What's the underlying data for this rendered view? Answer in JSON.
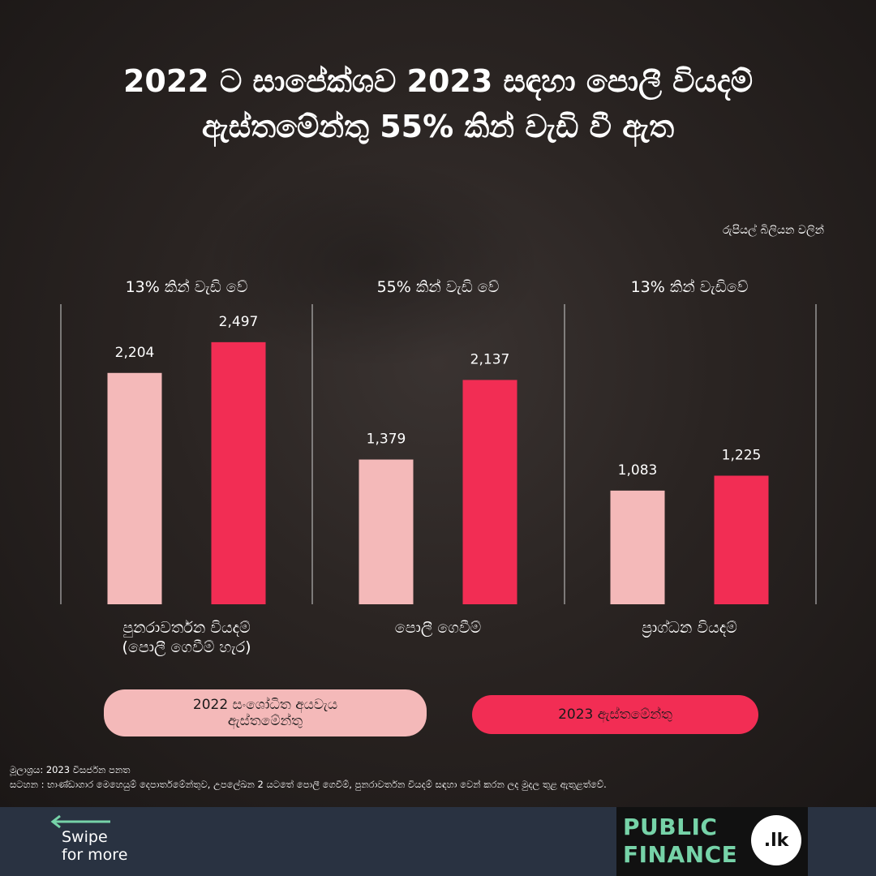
{
  "title": {
    "line1": "2022 ට සාපේක්ශව 2023 සඳහා පොලී වියදම්",
    "line2": "ඇස්තමේන්තු 55% කින් වැඩි වී ඇත"
  },
  "unit_note": "රුපියල් බිලියන වලින්",
  "colors": {
    "series_2022": "#f4b9b9",
    "series_2023": "#f22d54",
    "bottom_bar": "#293241",
    "brand_green": "#76d3a8"
  },
  "chart_data": {
    "type": "bar",
    "categories": [
      "පුනරාවර්තන වියදම් (පොලී ගෙවීම් හැර)",
      "පොලී ගෙවීම්",
      "ප්‍රාග්ධන වියදම්"
    ],
    "category_labels": [
      [
        "පුනරාවර්තන වියදම්",
        "(පොලී ගෙවීම් හැර)"
      ],
      [
        "පොලී ගෙවීම්"
      ],
      [
        "ප්‍රාග්ධන වියදම්"
      ]
    ],
    "growth_labels": [
      "13% කින් වැඩි වේ",
      "55% කින් වැඩි වේ",
      "13% කින් වැඩිවේ"
    ],
    "series": [
      {
        "name": "2022 සංශෝධිත අයවැය ඇස්තමේන්තු",
        "values": [
          2204,
          1379,
          1083
        ],
        "labels": [
          "2,204",
          "1,379",
          "1,083"
        ]
      },
      {
        "name": "2023 ඇස්තමේන්තු",
        "values": [
          2497,
          2137,
          1225
        ],
        "labels": [
          "2,497",
          "2,137",
          "1,225"
        ]
      }
    ],
    "ylim": [
      0,
      3400
    ],
    "grid": false,
    "legend_position": "bottom"
  },
  "legend": {
    "item_2022": "2022 සංශෝධිත අයවැය ඇස්තමේන්තු",
    "item_2023": "2023 ඇස්තමේන්තු"
  },
  "footer": {
    "source": "මූලාශ්‍රය: 2023 විසර්ජන පනත",
    "note": "සටහන : භාණ්ඩාගාර මෙහෙයුම් දෙපාර්තමේන්තුව, උපලේඛන 2 යටතේ පොලී ගෙවීම්, පුනරාවර්තන වියදම් සඳහා වෙන් කරන ලද මුදල තුළ ඇතුළත්වේ."
  },
  "swipe": {
    "text": "Swipe\nfor more"
  },
  "brand": {
    "line1": "PUBLIC",
    "line2": "FINANCE",
    "badge": ".lk"
  }
}
